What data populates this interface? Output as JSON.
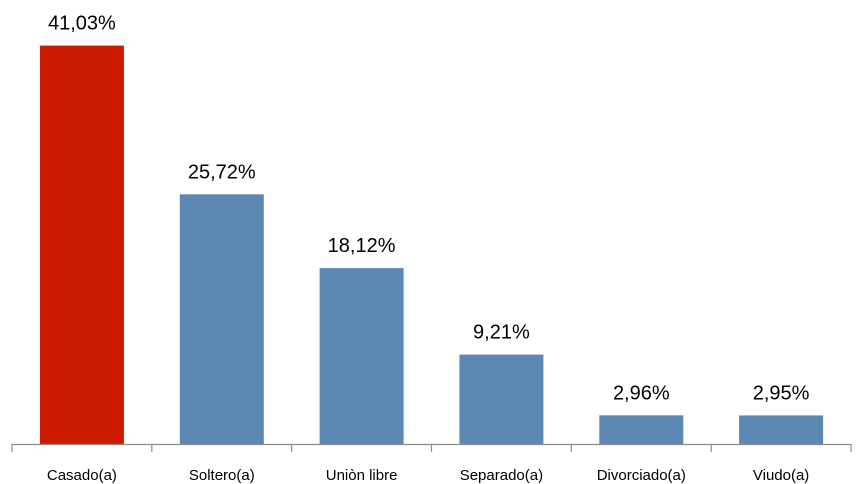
{
  "chart_data": {
    "type": "bar",
    "categories": [
      "Casado(a)",
      "Soltero(a)",
      "Uniòn libre",
      "Separado(a)",
      "Divorciado(a)",
      "Viudo(a)"
    ],
    "values": [
      41.03,
      25.72,
      18.12,
      9.21,
      2.96,
      2.95
    ],
    "data_labels": [
      "41,03%",
      "25,72%",
      "18,12%",
      "9,21%",
      "2,96%",
      "2,95%"
    ],
    "ylim": [
      0,
      44.7
    ],
    "grid": false,
    "legend": "none",
    "colors": {
      "highlight": "#CC1A00",
      "default": "#5E88B4",
      "axis": "#8C8C8C"
    },
    "highlight_index": 0
  }
}
